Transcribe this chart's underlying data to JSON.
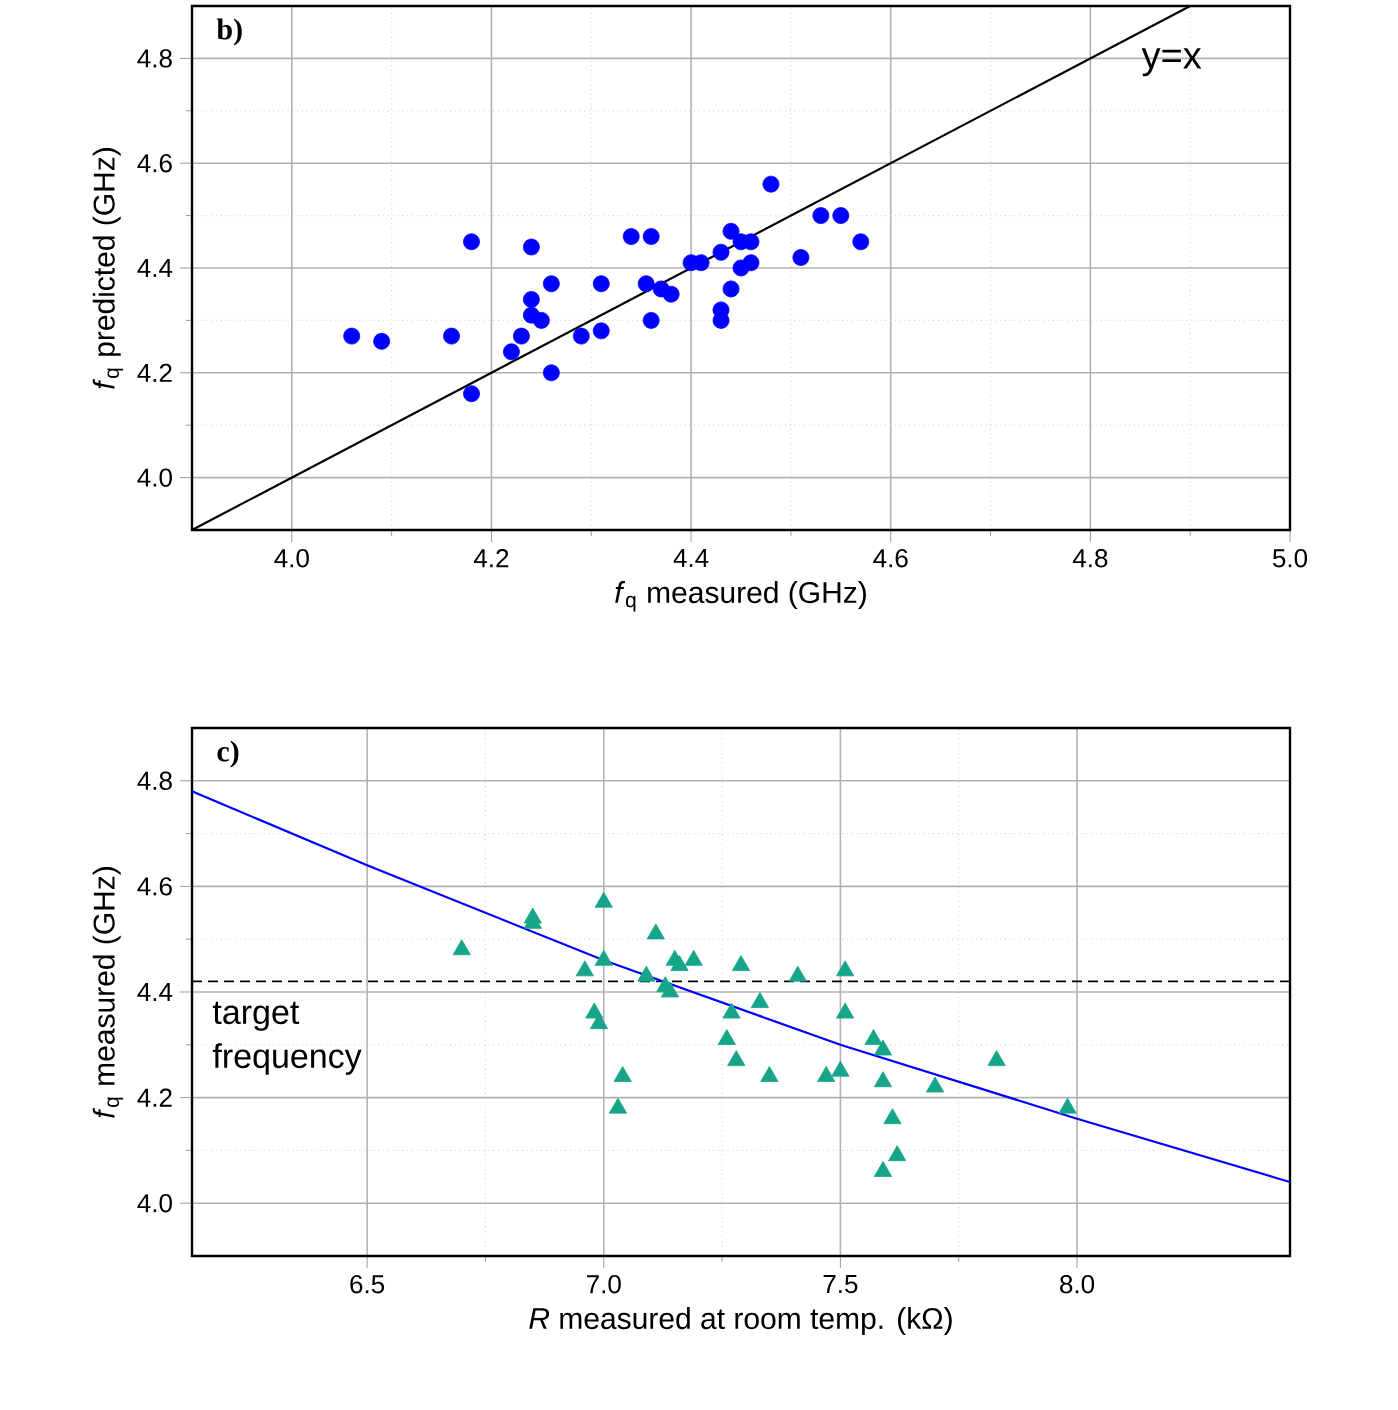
{
  "chart_data": [
    {
      "type": "scatter",
      "title": "b)",
      "xlabel": "*f*$_{q}$ measured (GHz)",
      "ylabel": "*f*$_{q}$ predicted (GHz)",
      "xlim": [
        3.9,
        5.0
      ],
      "ylim": [
        3.9,
        4.9
      ],
      "xticks": [
        {
          "value": 4.0,
          "label": "4.0"
        },
        4.2,
        4.4,
        4.6,
        4.8,
        {
          "value": 5.0,
          "label": "5.0"
        }
      ],
      "yticks": [
        {
          "value": 4.0,
          "label": "4.0"
        },
        4.2,
        4.4,
        4.6,
        4.8
      ],
      "grid": true,
      "marker": "circle",
      "annotations": [
        "y=x"
      ],
      "series": [
        {
          "color": "#0000ff",
          "x": [
            4.06,
            4.09,
            4.16,
            4.18,
            4.18,
            4.22,
            4.23,
            4.24,
            4.24,
            4.24,
            4.25,
            4.26,
            4.26,
            4.29,
            4.31,
            4.31,
            4.34,
            4.36,
            4.355,
            4.37,
            4.38,
            4.36,
            4.4,
            4.41,
            4.43,
            4.44,
            4.43,
            4.43,
            4.44,
            4.45,
            4.46,
            4.45,
            4.46,
            4.48,
            4.53,
            4.55,
            4.51,
            4.57
          ],
          "values": [
            4.27,
            4.26,
            4.27,
            4.45,
            4.16,
            4.24,
            4.27,
            4.44,
            4.34,
            4.31,
            4.3,
            4.37,
            4.2,
            4.27,
            4.28,
            4.37,
            4.46,
            4.46,
            4.37,
            4.36,
            4.35,
            4.3,
            4.41,
            4.41,
            4.43,
            4.47,
            4.32,
            4.3,
            4.36,
            4.4,
            4.41,
            4.45,
            4.45,
            4.56,
            4.5,
            4.5,
            4.42,
            4.45
          ]
        },
        {
          "type": "line",
          "marker": "none",
          "color": "#000000",
          "x": [
            3.9,
            4.9
          ],
          "values": [
            3.9,
            4.9
          ]
        }
      ]
    },
    {
      "type": "scatter",
      "title": "c)",
      "xlabel": "*R* measured at room temp. (kΩ)",
      "ylabel": "*f*$_{q}$ measured (GHz)",
      "xlim": [
        6.13,
        8.45
      ],
      "ylim": [
        3.9,
        4.9
      ],
      "xticks": [
        6.5,
        {
          "value": 7.0,
          "label": "7.0"
        },
        7.5,
        {
          "value": 8.0,
          "label": "8.0"
        }
      ],
      "yticks": [
        {
          "value": 4.0,
          "label": "4.0"
        },
        4.2,
        4.4,
        4.6,
        4.8
      ],
      "grid": true,
      "marker": "triangle",
      "ref_lines": [
        {
          "axis": "y",
          "value": 4.42,
          "label": "target frequency",
          "line_style": "dashed",
          "color": "#000000"
        }
      ],
      "series": [
        {
          "color": "#17a589",
          "x": [
            6.7,
            6.85,
            6.85,
            7.0,
            7.0,
            6.96,
            7.11,
            7.15,
            7.16,
            7.19,
            7.09,
            7.13,
            7.14,
            7.29,
            6.98,
            6.99,
            7.04,
            7.03,
            7.26,
            7.28,
            7.27,
            7.41,
            7.51,
            7.51,
            7.33,
            7.35,
            7.47,
            7.5,
            7.57,
            7.59,
            7.59,
            7.61,
            7.62,
            7.59,
            7.7,
            7.83,
            7.98
          ],
          "values": [
            4.48,
            4.54,
            4.53,
            4.57,
            4.46,
            4.44,
            4.51,
            4.46,
            4.45,
            4.46,
            4.43,
            4.41,
            4.4,
            4.45,
            4.36,
            4.34,
            4.24,
            4.18,
            4.31,
            4.27,
            4.36,
            4.43,
            4.44,
            4.36,
            4.38,
            4.24,
            4.24,
            4.25,
            4.31,
            4.29,
            4.23,
            4.16,
            4.09,
            4.06,
            4.22,
            4.27,
            4.18
          ]
        },
        {
          "type": "line",
          "marker": "none",
          "color": "#0000ff",
          "x": [
            6.13,
            6.5,
            7.0,
            7.5,
            8.0,
            8.45
          ],
          "values": [
            4.78,
            4.64,
            4.46,
            4.3,
            4.16,
            4.04
          ]
        }
      ]
    }
  ]
}
